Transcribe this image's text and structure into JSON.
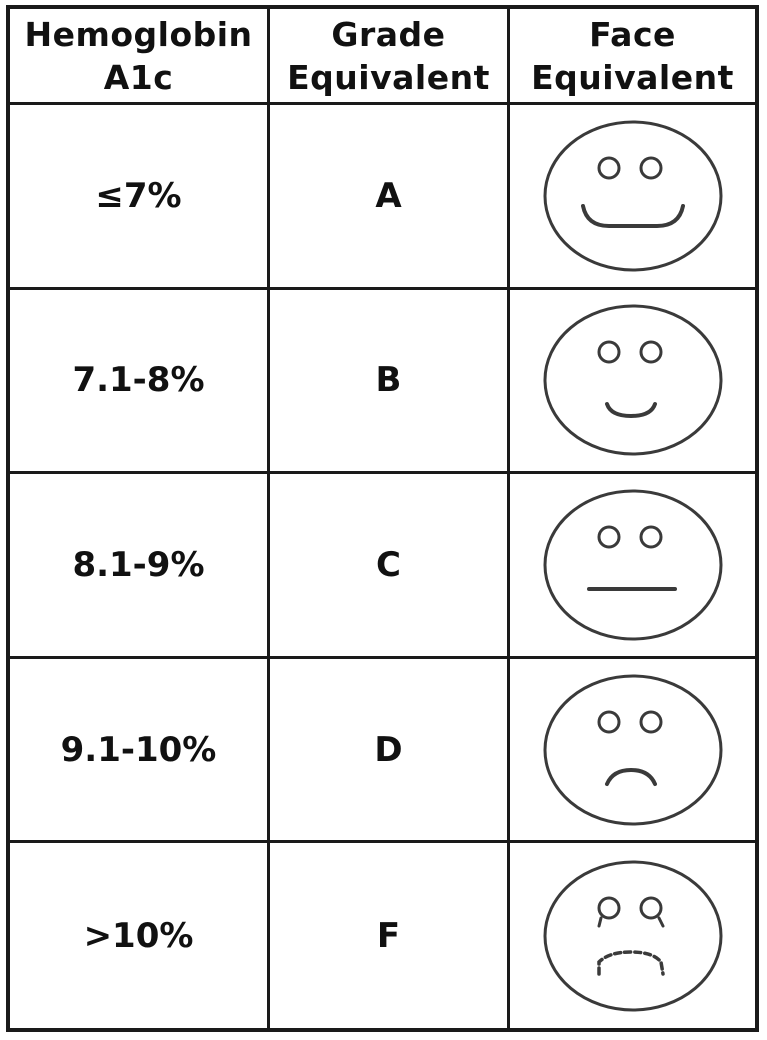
{
  "headers": {
    "hba1c_line1": "Hemoglobin",
    "hba1c_line2": "A1c",
    "grade_line1": "Grade",
    "grade_line2": "Equivalent",
    "face_line1": "Face",
    "face_line2": "Equivalent"
  },
  "rows": [
    {
      "hba1c": "≤7%",
      "grade": "A",
      "face_icon": "happy-face-icon"
    },
    {
      "hba1c": "7.1-8%",
      "grade": "B",
      "face_icon": "slight-smile-face-icon"
    },
    {
      "hba1c": "8.1-9%",
      "grade": "C",
      "face_icon": "neutral-face-icon"
    },
    {
      "hba1c": "9.1-10%",
      "grade": "D",
      "face_icon": "sad-face-icon"
    },
    {
      "hba1c": ">10%",
      "grade": "F",
      "face_icon": "crying-face-icon"
    }
  ]
}
